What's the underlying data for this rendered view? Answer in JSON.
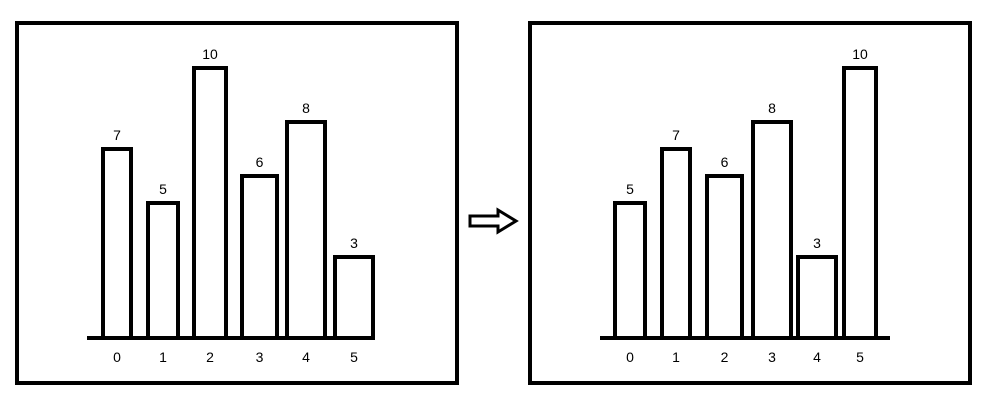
{
  "chart_data": [
    {
      "type": "bar",
      "categories": [
        "0",
        "1",
        "2",
        "3",
        "4",
        "5"
      ],
      "values": [
        7,
        5,
        10,
        6,
        8,
        3
      ],
      "title": "",
      "xlabel": "",
      "ylabel": "",
      "ylim": [
        0,
        10
      ],
      "grid": false
    },
    {
      "type": "bar",
      "categories": [
        "0",
        "1",
        "2",
        "3",
        "4",
        "5"
      ],
      "values": [
        5,
        7,
        6,
        8,
        3,
        10
      ],
      "title": "",
      "xlabel": "",
      "ylabel": "",
      "ylim": [
        0,
        10
      ],
      "grid": false
    }
  ],
  "colors": {
    "stroke": "#000000",
    "background": "#ffffff"
  },
  "transition_icon": "right-arrow-icon"
}
